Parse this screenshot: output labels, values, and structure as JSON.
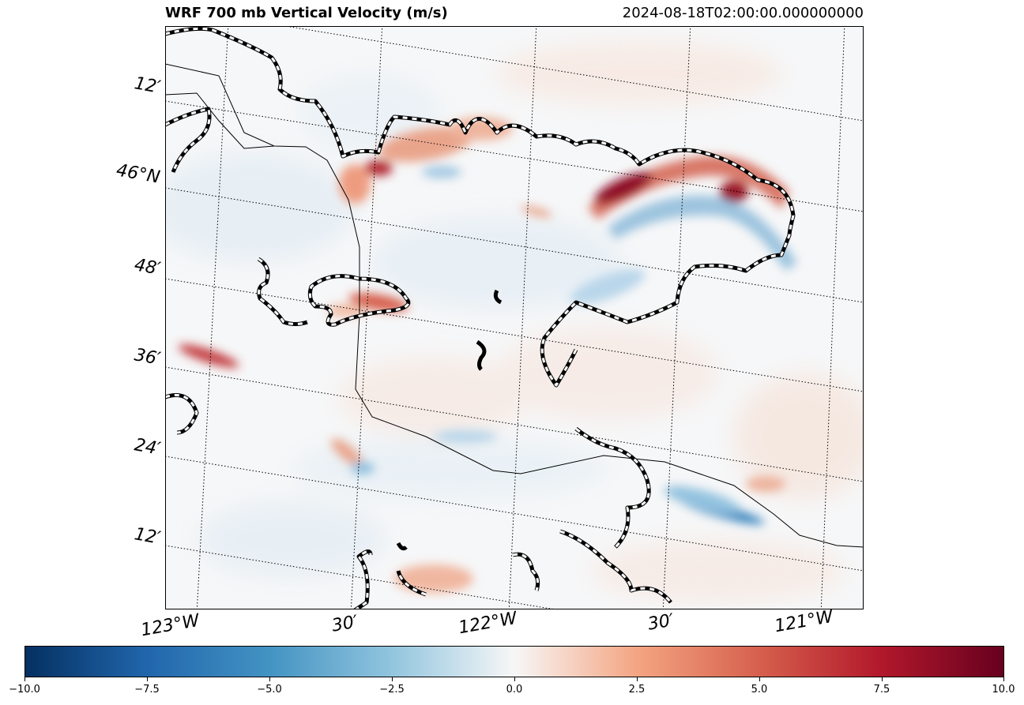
{
  "header": {
    "title": "WRF 700 mb Vertical Velocity (m/s)",
    "timestamp": "2024-08-18T02:00:00.000000000"
  },
  "map": {
    "longitude_labels": [
      "123°W",
      "30′",
      "122°W",
      "30′",
      "121°W"
    ],
    "latitude_labels": [
      "12′",
      "46°N",
      "48′",
      "36′",
      "24′",
      "12′"
    ],
    "gridlines": "dotted",
    "colormap": "RdBu_r"
  },
  "colorbar": {
    "min": -10.0,
    "max": 10.0,
    "ticks": [
      "−10.0",
      "−7.5",
      "−5.0",
      "−2.5",
      "0.0",
      "2.5",
      "5.0",
      "7.5",
      "10.0"
    ],
    "colors": [
      "#053061",
      "#2166ac",
      "#4393c3",
      "#92c5de",
      "#f7f7f7",
      "#f4a582",
      "#d6604d",
      "#b2182b",
      "#67001f"
    ]
  }
}
